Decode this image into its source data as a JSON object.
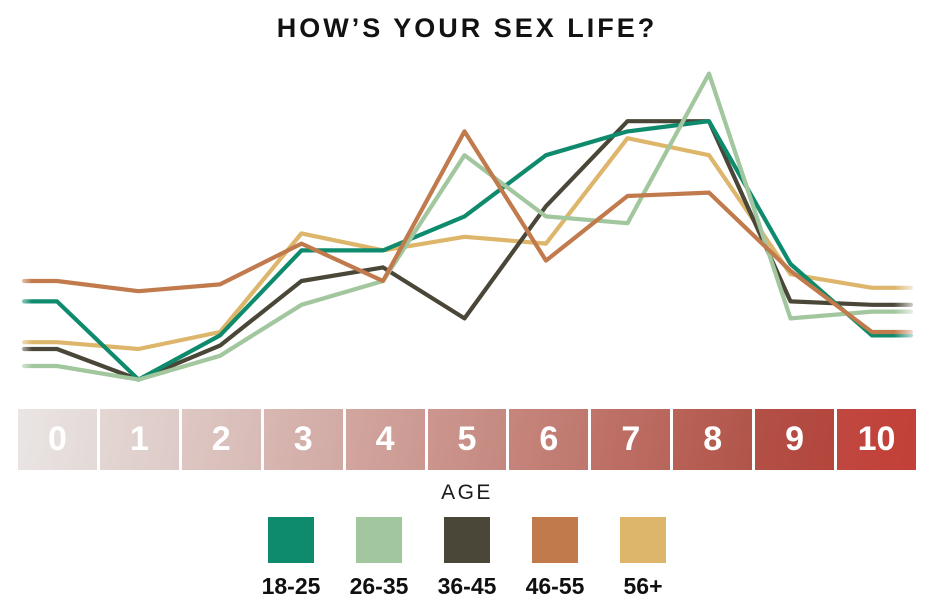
{
  "title": "HOW’S YOUR SEX LIFE?",
  "legend": {
    "title": "AGE"
  },
  "chart_data": {
    "type": "line",
    "title": "HOW’S YOUR SEX LIFE?",
    "categories": [
      "0",
      "1",
      "2",
      "3",
      "4",
      "5",
      "6",
      "7",
      "8",
      "9",
      "10"
    ],
    "xlabel": "",
    "ylabel": "",
    "ylim": [
      0,
      100
    ],
    "grid": false,
    "legend_title": "AGE",
    "legend_position": "bottom",
    "values_note": "y-axis unlabeled in original; values are approximate relative response shares on a 0-100 scale read from line heights",
    "series": [
      {
        "name": "18-25",
        "color": "#0e8a6d",
        "values": [
          29,
          6,
          19,
          44,
          44,
          54,
          72,
          79,
          82,
          40,
          19
        ]
      },
      {
        "name": "26-35",
        "color": "#a2c79e",
        "values": [
          10,
          6,
          13,
          28,
          35,
          72,
          54,
          52,
          96,
          24,
          26
        ]
      },
      {
        "name": "36-45",
        "color": "#4a4638",
        "values": [
          15,
          6,
          16,
          35,
          39,
          24,
          57,
          82,
          82,
          29,
          28
        ]
      },
      {
        "name": "46-55",
        "color": "#c17a4c",
        "values": [
          35,
          32,
          34,
          46,
          35,
          79,
          41,
          60,
          61,
          38,
          20
        ]
      },
      {
        "name": "56+",
        "color": "#ddb66c",
        "values": [
          17,
          15,
          20,
          49,
          44,
          48,
          46,
          77,
          72,
          37,
          33
        ]
      }
    ],
    "x_band": {
      "text_color": "#ffffff",
      "cell_colors": [
        [
          "#eae5e4",
          "#e3d9d7"
        ],
        [
          "#e4d7d4",
          "#ddcac6"
        ],
        [
          "#dec8c4",
          "#d7bab5"
        ],
        [
          "#d8b7b2",
          "#d1a9a3"
        ],
        [
          "#d2a6a0",
          "#cb9891"
        ],
        [
          "#cc978f",
          "#c4887f"
        ],
        [
          "#c6867d",
          "#be776d"
        ],
        [
          "#c0746a",
          "#b8655b"
        ],
        [
          "#b96359",
          "#b15448"
        ],
        [
          "#b25147",
          "#b4453c"
        ],
        [
          "#bf4841",
          "#c33f37"
        ]
      ]
    }
  }
}
